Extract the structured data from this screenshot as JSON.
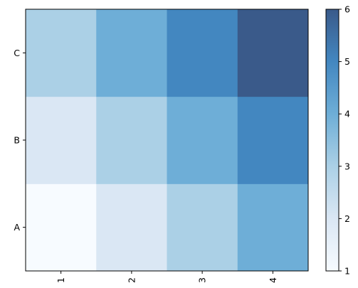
{
  "chart_data": {
    "type": "heatmap",
    "x": [
      "1",
      "2",
      "3",
      "4"
    ],
    "y": [
      "A",
      "B",
      "C"
    ],
    "values": [
      [
        1,
        2,
        3,
        4
      ],
      [
        2,
        3,
        4,
        5
      ],
      [
        3,
        4,
        5,
        6
      ]
    ],
    "colorscale": "Blues",
    "colorbar": {
      "range": [
        1,
        6
      ],
      "ticks": [
        "1",
        "2",
        "3",
        "4",
        "5",
        "6"
      ]
    },
    "xlabel": "",
    "ylabel": "",
    "title": ""
  },
  "colors": {
    "1": "#f7fbff",
    "2": "#dae7f4",
    "3": "#abd0e6",
    "4": "#6eaed7",
    "5": "#4387c0",
    "6": "#3a5a8a"
  }
}
